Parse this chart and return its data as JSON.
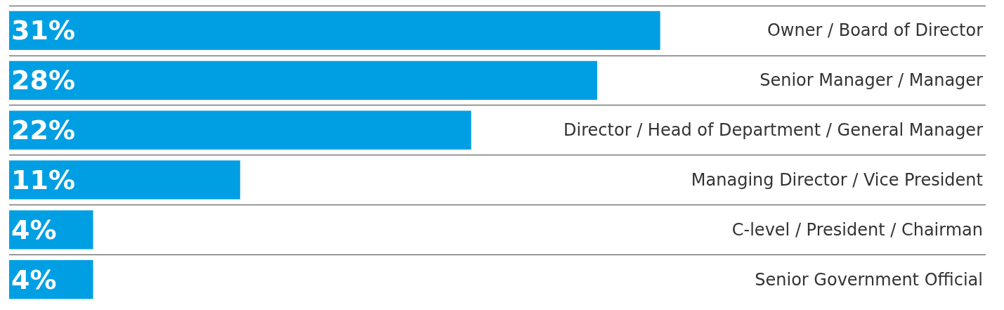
{
  "chart_data": {
    "type": "bar",
    "orientation": "horizontal",
    "categories": [
      "Owner / Board of Director",
      "Senior Manager / Manager",
      "Director / Head of Department / General Manager",
      "Managing Director / Vice President",
      "C-level / President / Chairman",
      "Senior Government Official"
    ],
    "values": [
      31,
      28,
      22,
      11,
      4,
      4
    ],
    "color": "#009fe3",
    "value_labels": [
      "31%",
      "28%",
      "22%",
      "11%",
      "4%",
      "4%"
    ],
    "grid": true
  }
}
